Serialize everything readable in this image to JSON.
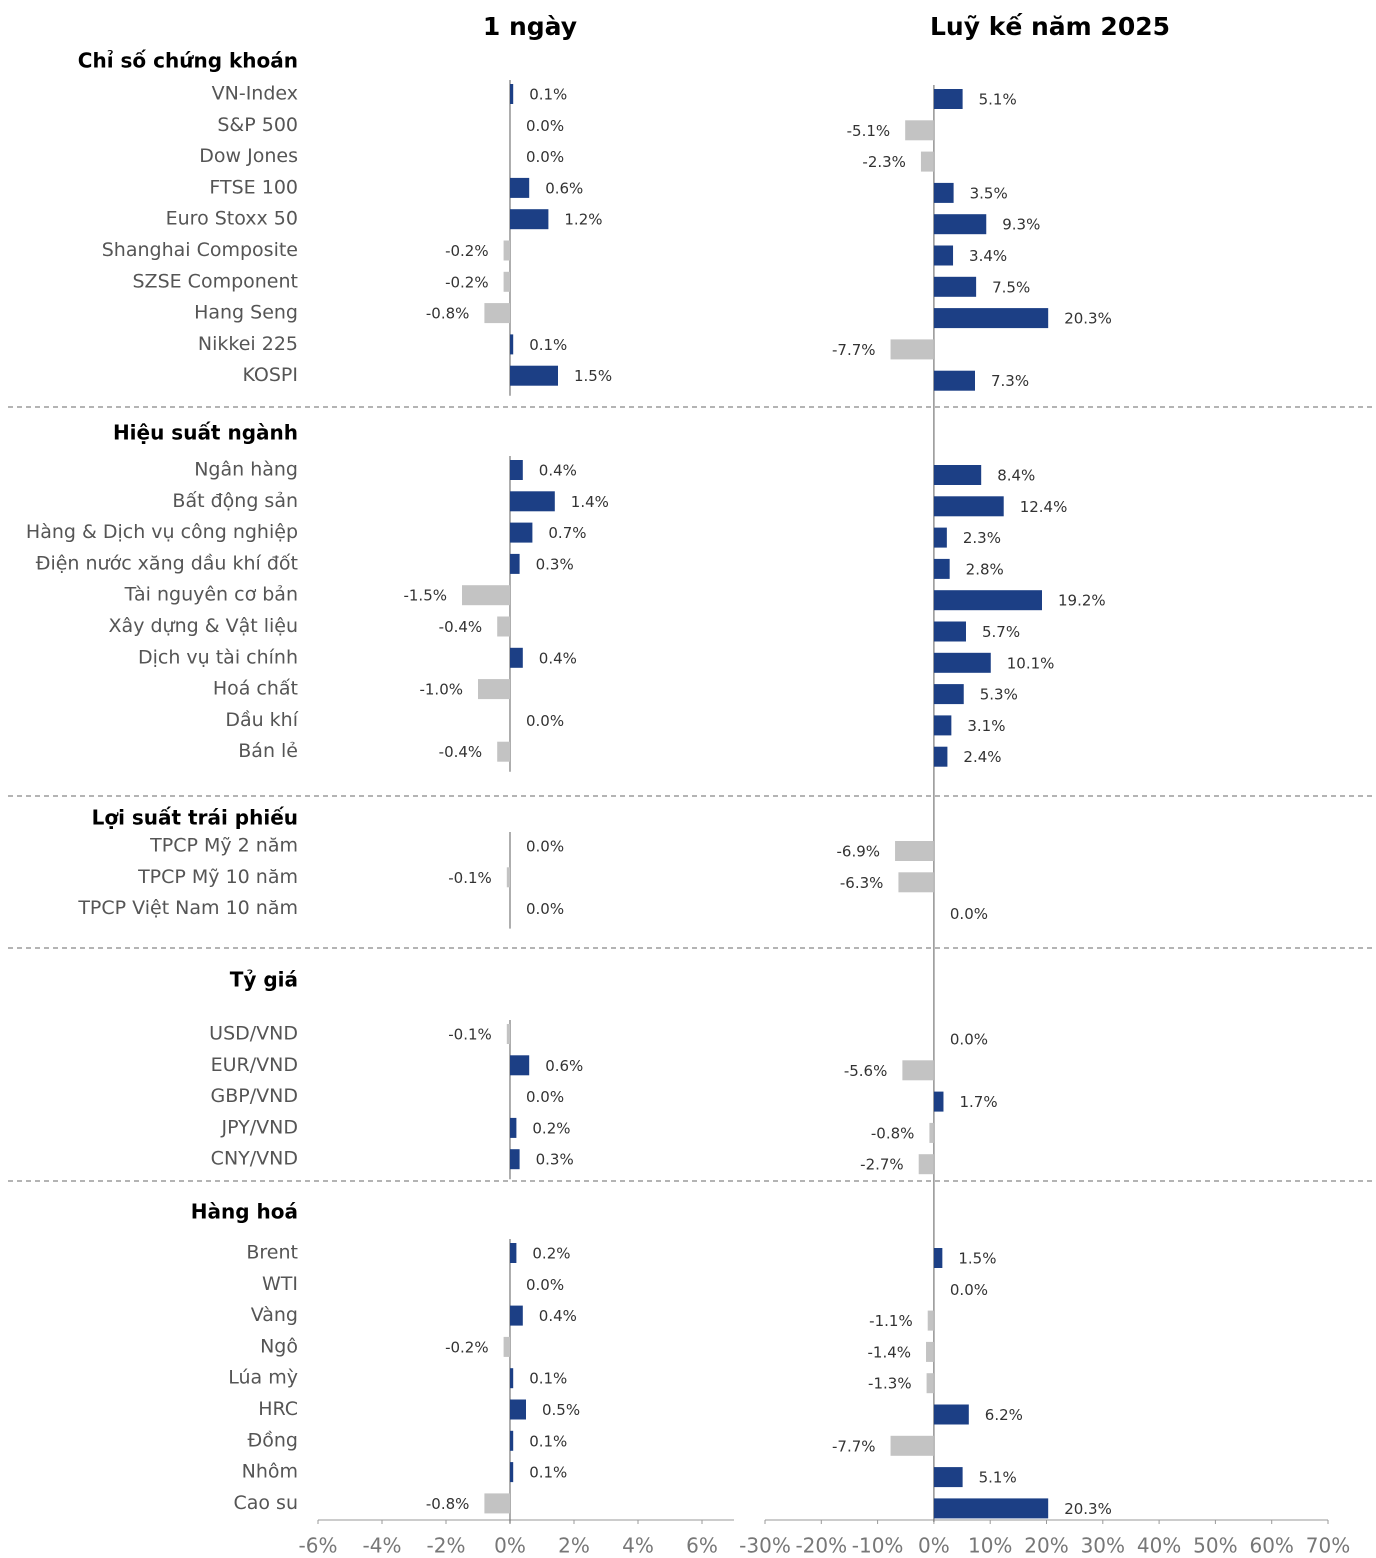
{
  "chart_data": {
    "type": "bar",
    "orientation": "horizontal",
    "color_positive": "#1c3f85",
    "color_negative": "#c3c3c3",
    "groups": [
      {
        "title": "Chỉ số chứng khoán",
        "categories": [
          "VN-Index",
          "S&P 500",
          "Dow Jones",
          "FTSE 100",
          "Euro Stoxx 50",
          "Shanghai Composite",
          "SZSE Component",
          "Hang Seng",
          "Nikkei 225",
          "KOSPI"
        ]
      },
      {
        "title": "Hiệu suất ngành",
        "categories": [
          "Ngân hàng",
          "Bất động sản",
          "Hàng & Dịch vụ công nghiệp",
          "Điện nước xăng dầu khí đốt",
          "Tài nguyên cơ bản",
          "Xây dựng & Vật liệu",
          "Dịch vụ tài chính",
          "Hoá chất",
          "Dầu khí",
          "Bán lẻ"
        ]
      },
      {
        "title": "Lợi suất trái phiếu",
        "categories": [
          "TPCP Mỹ 2 năm",
          "TPCP Mỹ 10 năm",
          "TPCP Việt Nam 10 năm"
        ]
      },
      {
        "title": "Tỷ giá",
        "categories": [
          "USD/VND",
          "EUR/VND",
          "GBP/VND",
          "JPY/VND",
          "CNY/VND"
        ]
      },
      {
        "title": "Hàng hoá",
        "categories": [
          "Brent",
          "WTI",
          "Vàng",
          "Ngô",
          "Lúa mỳ",
          "HRC",
          "Đồng",
          "Nhôm",
          "Cao su"
        ]
      }
    ],
    "panels": [
      {
        "title": "1 ngày",
        "values": [
          [
            0.1,
            0.0,
            0.0,
            0.6,
            1.2,
            -0.2,
            -0.2,
            -0.8,
            0.1,
            1.5
          ],
          [
            0.4,
            1.4,
            0.7,
            0.3,
            -1.5,
            -0.4,
            0.4,
            -1.0,
            0.0,
            -0.4
          ],
          [
            0.0,
            -0.1,
            0.0
          ],
          [
            -0.1,
            0.6,
            0.0,
            0.2,
            0.3
          ],
          [
            0.2,
            0.0,
            0.4,
            -0.2,
            0.1,
            0.5,
            0.1,
            0.1,
            -0.8
          ]
        ],
        "value_labels": [
          [
            "0.1%",
            "0.0%",
            "0.0%",
            "0.6%",
            "1.2%",
            "-0.2%",
            "-0.2%",
            "-0.8%",
            "0.1%",
            "1.5%"
          ],
          [
            "0.4%",
            "1.4%",
            "0.7%",
            "0.3%",
            "-1.5%",
            "-0.4%",
            "0.4%",
            "-1.0%",
            "0.0%",
            "-0.4%"
          ],
          [
            "0.0%",
            "-0.1%",
            "0.0%"
          ],
          [
            "-0.1%",
            "0.6%",
            "0.0%",
            "0.2%",
            "0.3%"
          ],
          [
            "0.2%",
            "0.0%",
            "0.4%",
            "-0.2%",
            "0.1%",
            "0.5%",
            "0.1%",
            "0.1%",
            "-0.8%"
          ]
        ],
        "xlim": [
          -6,
          7
        ],
        "xticks": [
          {
            "value": -6,
            "label": "-6%"
          },
          {
            "value": -4,
            "label": "-4%"
          },
          {
            "value": -2,
            "label": "-2%"
          },
          {
            "value": 0,
            "label": "0%"
          },
          {
            "value": 2,
            "label": "2%"
          },
          {
            "value": 4,
            "label": "4%"
          },
          {
            "value": 6,
            "label": "6%"
          }
        ]
      },
      {
        "title": "Luỹ kế năm 2025",
        "values": [
          [
            5.1,
            -5.1,
            -2.3,
            3.5,
            9.3,
            3.4,
            7.5,
            20.3,
            -7.7,
            7.3
          ],
          [
            8.4,
            12.4,
            2.3,
            2.8,
            19.2,
            5.7,
            10.1,
            5.3,
            3.1,
            2.4
          ],
          [
            -6.9,
            -6.3,
            0.0
          ],
          [
            0.0,
            -5.6,
            1.7,
            -0.8,
            -2.7
          ],
          [
            1.5,
            0.0,
            -1.1,
            -1.4,
            -1.3,
            6.2,
            -7.7,
            5.1,
            20.3
          ]
        ],
        "value_labels": [
          [
            "5.1%",
            "-5.1%",
            "-2.3%",
            "3.5%",
            "9.3%",
            "3.4%",
            "7.5%",
            "20.3%",
            "-7.7%",
            "7.3%"
          ],
          [
            "8.4%",
            "12.4%",
            "2.3%",
            "2.8%",
            "19.2%",
            "5.7%",
            "10.1%",
            "5.3%",
            "3.1%",
            "2.4%"
          ],
          [
            "-6.9%",
            "-6.3%",
            "0.0%"
          ],
          [
            "0.0%",
            "-5.6%",
            "1.7%",
            "-0.8%",
            "-2.7%"
          ],
          [
            "1.5%",
            "0.0%",
            "-1.1%",
            "-1.4%",
            "-1.3%",
            "6.2%",
            "-7.7%",
            "5.1%",
            "20.3%"
          ]
        ],
        "xlim": [
          -30,
          70
        ],
        "xticks": [
          {
            "value": -30,
            "label": "-30%"
          },
          {
            "value": -20,
            "label": "-20%"
          },
          {
            "value": -10,
            "label": "-10%"
          },
          {
            "value": 0,
            "label": "0%"
          },
          {
            "value": 10,
            "label": "10%"
          },
          {
            "value": 20,
            "label": "20%"
          },
          {
            "value": 30,
            "label": "30%"
          },
          {
            "value": 40,
            "label": "40%"
          },
          {
            "value": 50,
            "label": "50%"
          },
          {
            "value": 60,
            "label": "60%"
          },
          {
            "value": 70,
            "label": "70%"
          }
        ]
      }
    ]
  }
}
